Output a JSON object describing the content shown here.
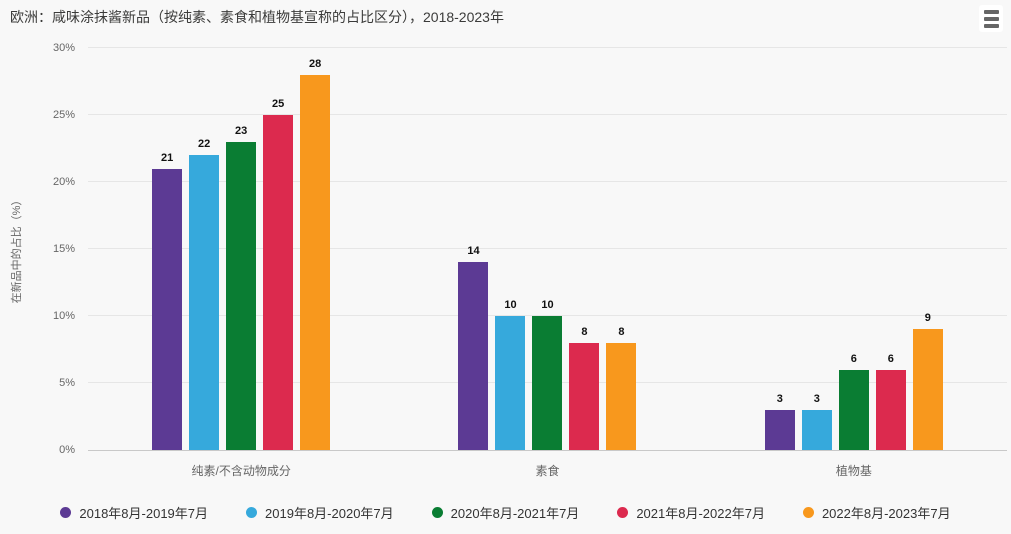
{
  "header": {
    "title": "欧洲：咸味涂抹酱新品（按纯素、素食和植物基宣称的占比区分），2018-2023年"
  },
  "colors": {
    "background": "#f8f8f8",
    "title_text": "#3b3b3a",
    "axis_text": "#666666",
    "gridline": "#e6e6e6",
    "axis_line": "#c9c9c9",
    "value_label": "#111111",
    "legend_text": "#333333",
    "menu_icon_bars": "#666666",
    "menu_button_background": "#ffffff"
  },
  "chart_data": {
    "type": "bar",
    "title": "欧洲：咸味涂抹酱新品（按纯素、素食和植物基宣称的占比区分），2018-2023年",
    "xlabel": "",
    "ylabel": "在新品中的占比（%）",
    "ylim": [
      0,
      30
    ],
    "ytick_step": 5,
    "ytick_suffix": "%",
    "grid": true,
    "legend_position": "bottom",
    "categories": [
      "纯素/不含动物成分",
      "素食",
      "植物基"
    ],
    "series": [
      {
        "name": "2018年8月-2019年7月",
        "color": "#5c3a94",
        "values": [
          21,
          14,
          3
        ]
      },
      {
        "name": "2019年8月-2020年7月",
        "color": "#36a9dc",
        "values": [
          22,
          10,
          3
        ]
      },
      {
        "name": "2020年8月-2021年7月",
        "color": "#0a7d33",
        "values": [
          23,
          10,
          6
        ]
      },
      {
        "name": "2021年8月-2022年7月",
        "color": "#dc2a4e",
        "values": [
          25,
          8,
          6
        ]
      },
      {
        "name": "2022年8月-2023年7月",
        "color": "#f8981d",
        "values": [
          28,
          8,
          9
        ]
      }
    ]
  }
}
